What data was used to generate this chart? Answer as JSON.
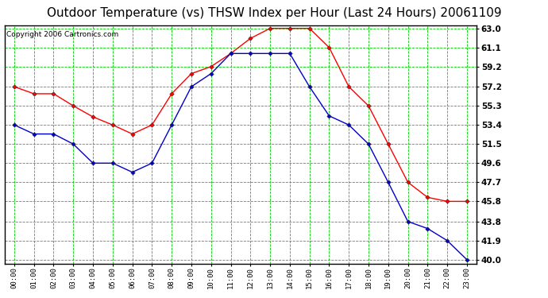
{
  "title": "Outdoor Temperature (vs) THSW Index per Hour (Last 24 Hours) 20061109",
  "copyright": "Copyright 2006 Cartronics.com",
  "hours": [
    "00:00",
    "01:00",
    "02:00",
    "03:00",
    "04:00",
    "05:00",
    "06:00",
    "07:00",
    "08:00",
    "09:00",
    "10:00",
    "11:00",
    "12:00",
    "13:00",
    "14:00",
    "15:00",
    "16:00",
    "17:00",
    "18:00",
    "19:00",
    "20:00",
    "21:00",
    "22:00",
    "23:00"
  ],
  "temp_red": [
    57.2,
    56.5,
    56.5,
    55.3,
    54.2,
    53.4,
    52.5,
    53.4,
    56.5,
    58.5,
    59.2,
    60.5,
    62.0,
    63.0,
    63.0,
    63.0,
    61.1,
    57.2,
    55.3,
    51.5,
    47.7,
    46.2,
    45.8,
    45.8
  ],
  "temp_blue": [
    53.4,
    52.5,
    52.5,
    51.5,
    49.6,
    49.6,
    48.7,
    49.6,
    53.4,
    57.2,
    58.5,
    60.5,
    60.5,
    60.5,
    60.5,
    57.2,
    54.3,
    53.4,
    51.5,
    47.7,
    43.8,
    43.1,
    41.9,
    40.0
  ],
  "y_ticks": [
    40.0,
    41.9,
    43.8,
    45.8,
    47.7,
    49.6,
    51.5,
    53.4,
    55.3,
    57.2,
    59.2,
    61.1,
    63.0
  ],
  "ymin": 40.0,
  "ymax": 63.0,
  "red_color": "#ff0000",
  "blue_color": "#0000cc",
  "bg_color": "#ffffff",
  "plot_bg": "#ffffff",
  "grid_color": "#00cc00",
  "title_fontsize": 11,
  "copyright_fontsize": 6.5
}
